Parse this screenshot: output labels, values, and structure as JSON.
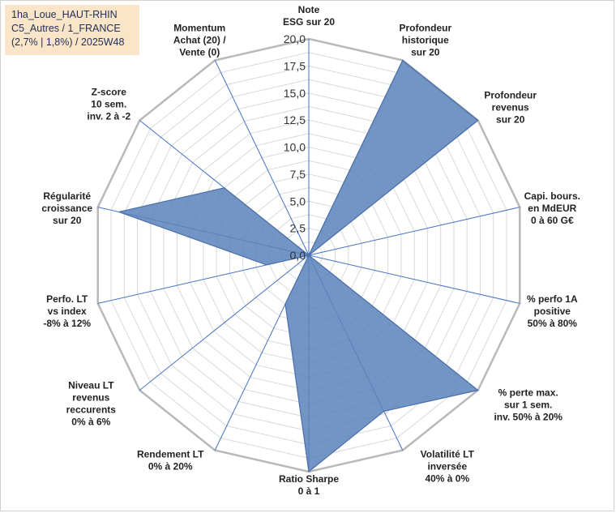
{
  "chart_data": {
    "type": "radar",
    "title_lines": [
      "1ha_Loue_HAUT-RHIN",
      "C5_Autres / 1_FRANCE",
      "(2,7% | 1,8%) / 2025W48"
    ],
    "r_range": [
      0,
      20
    ],
    "r_ticks": [
      "0,0",
      "2,5",
      "5,0",
      "7,5",
      "10,0",
      "12,5",
      "15,0",
      "17,5",
      "20,0"
    ],
    "grid_rings": 16,
    "axes": [
      {
        "label": [
          "Note",
          "ESG sur 20"
        ],
        "value": 0
      },
      {
        "label": [
          "Profondeur",
          "historique",
          "sur 20"
        ],
        "value": 20
      },
      {
        "label": [
          "Profondeur",
          "revenus",
          "sur 20"
        ],
        "value": 20
      },
      {
        "label": [
          "Capi. bours.",
          "en MdEUR",
          "0 à 60 G€"
        ],
        "value": 0
      },
      {
        "label": [
          "% perfo 1A",
          "positive",
          "50% à 80%"
        ],
        "value": 0
      },
      {
        "label": [
          "% perte max.",
          "sur 1 sem.",
          "inv. 50% à 20%"
        ],
        "value": 20
      },
      {
        "label": [
          "Volatilité LT",
          "inversée",
          "40% à 0%"
        ],
        "value": 16
      },
      {
        "label": [
          "Ratio Sharpe",
          "0 à 1"
        ],
        "value": 20
      },
      {
        "label": [
          "Rendement LT",
          "0% à 20%"
        ],
        "value": 5
      },
      {
        "label": [
          "Niveau LT",
          "revenus",
          "reccurents",
          "0% à 6%"
        ],
        "value": 0
      },
      {
        "label": [
          "Perfo. LT",
          "vs index",
          "-8% à 12%"
        ],
        "value": 4
      },
      {
        "label": [
          "Régularité",
          "croissance",
          "sur 20"
        ],
        "value": 18
      },
      {
        "label": [
          "Z-score",
          "10 sem.",
          "inv. 2 à -2"
        ],
        "value": 10
      },
      {
        "label": [
          "Momentum",
          "Achat (20) /",
          "Vente (0)"
        ],
        "value": 0
      }
    ],
    "colors": {
      "fill": "#5b82bb",
      "fill_opacity": "0.85",
      "stroke": "#4a6fa8",
      "grid": "#d9d9d9",
      "outer": "#b8b8b8",
      "spoke": "#4472c4"
    }
  }
}
